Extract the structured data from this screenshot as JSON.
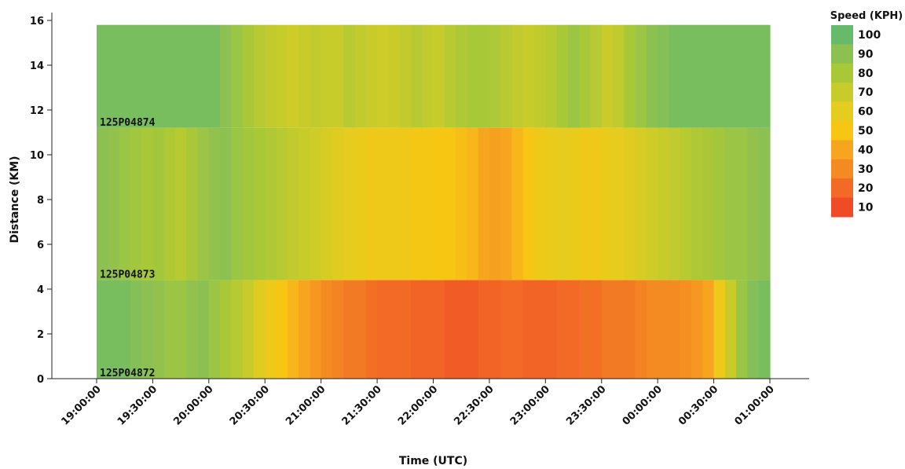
{
  "chart_data": {
    "type": "heatmap",
    "xlabel": "Time (UTC)",
    "ylabel": "Distance (KM)",
    "x_ticks": [
      "19:00:00",
      "19:30:00",
      "20:00:00",
      "20:30:00",
      "21:00:00",
      "21:30:00",
      "22:00:00",
      "22:30:00",
      "23:00:00",
      "23:30:00",
      "00:00:00",
      "00:30:00",
      "01:00:00"
    ],
    "y_ticks": [
      0,
      2,
      4,
      6,
      8,
      10,
      12,
      14,
      16
    ],
    "ylim": [
      0,
      16
    ],
    "colorscale": {
      "title": "Speed (KPH)",
      "levels": [
        {
          "value": 100,
          "color": "#66bb6a"
        },
        {
          "value": 90,
          "color": "#8cc152"
        },
        {
          "value": 80,
          "color": "#a8c838"
        },
        {
          "value": 70,
          "color": "#c8cc2a"
        },
        {
          "value": 60,
          "color": "#e6cc1e"
        },
        {
          "value": 50,
          "color": "#f7c613"
        },
        {
          "value": 40,
          "color": "#f7a51e"
        },
        {
          "value": 30,
          "color": "#f48a22"
        },
        {
          "value": 20,
          "color": "#f26a25"
        },
        {
          "value": 10,
          "color": "#ef4b26"
        }
      ]
    },
    "sensors": [
      {
        "id": "125P04874",
        "km": 11.2
      },
      {
        "id": "125P04873",
        "km": 4.4
      },
      {
        "id": "125P04872",
        "km": 0
      }
    ],
    "segments": [
      {
        "from_km": 11.2,
        "to_km": 15.8,
        "time_start": "19:00:00",
        "time_end": "01:00:00",
        "speeds": [
          95,
          95,
          95,
          95,
          95,
          95,
          95,
          95,
          95,
          95,
          95,
          90,
          85,
          80,
          75,
          72,
          70,
          68,
          70,
          72,
          70,
          70,
          75,
          72,
          70,
          68,
          70,
          72,
          75,
          72,
          70,
          75,
          78,
          80,
          80,
          78,
          75,
          72,
          70,
          72,
          75,
          80,
          85,
          80,
          75,
          70,
          72,
          80,
          85,
          90,
          92,
          95,
          95,
          95,
          95,
          95,
          95,
          95,
          95,
          95
        ]
      },
      {
        "from_km": 4.4,
        "to_km": 11.2,
        "time_start": "19:00:00",
        "time_end": "01:00:00",
        "speeds": [
          90,
          88,
          85,
          82,
          80,
          82,
          78,
          75,
          80,
          85,
          88,
          90,
          85,
          82,
          80,
          78,
          75,
          72,
          70,
          68,
          65,
          62,
          60,
          58,
          55,
          55,
          55,
          55,
          52,
          52,
          50,
          50,
          48,
          45,
          40,
          38,
          40,
          45,
          50,
          55,
          58,
          60,
          58,
          55,
          55,
          58,
          60,
          62,
          65,
          68,
          70,
          72,
          75,
          78,
          80,
          82,
          85,
          85,
          88,
          90
        ]
      },
      {
        "from_km": 0,
        "to_km": 4.4,
        "time_start": "19:00:00",
        "time_end": "01:00:00",
        "speeds": [
          95,
          95,
          95,
          92,
          90,
          88,
          85,
          85,
          88,
          90,
          85,
          80,
          75,
          70,
          62,
          55,
          50,
          45,
          40,
          35,
          30,
          28,
          25,
          25,
          22,
          20,
          20,
          20,
          18,
          18,
          18,
          15,
          15,
          15,
          18,
          18,
          20,
          20,
          18,
          18,
          18,
          20,
          20,
          22,
          22,
          25,
          25,
          25,
          28,
          30,
          30,
          30,
          32,
          35,
          40,
          55,
          70,
          85,
          92,
          95
        ]
      }
    ]
  }
}
